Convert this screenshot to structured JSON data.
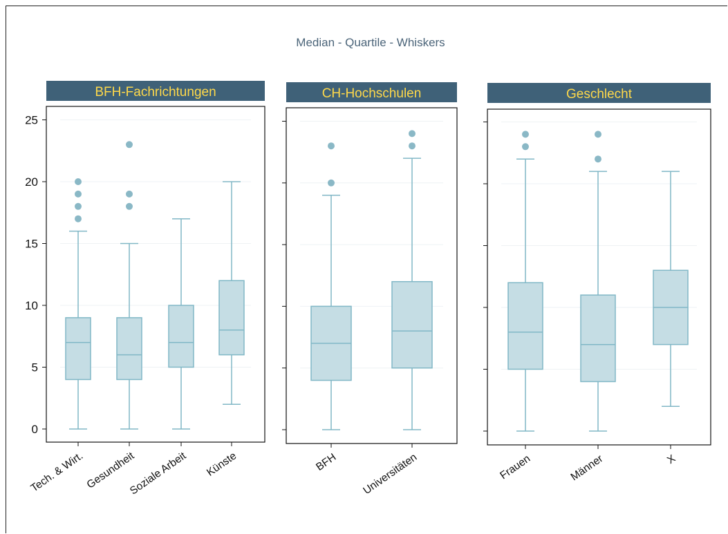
{
  "figure_title": "Median - Quartile - Whiskers",
  "colors": {
    "header_bg": "#3f6178",
    "header_text": "#ffd94a",
    "box_fill": "#c5dde4",
    "box_stroke": "#80b7c6",
    "outlier": "#8ab8c6",
    "grid": "#eef2f4",
    "title": "#4b6479"
  },
  "chart_data": [
    {
      "type": "boxplot",
      "title": "BFH-Fachrichtungen",
      "ylim": [
        0,
        25
      ],
      "yticks": [
        0,
        5,
        10,
        15,
        20,
        25
      ],
      "grid": true,
      "categories": [
        "Tech. & Wirt.",
        "Gesundheit",
        "Soziale Arbeit",
        "Künste"
      ],
      "boxes": [
        {
          "category": "Tech. & Wirt.",
          "whisker_low": 0,
          "q1": 4,
          "median": 7,
          "q3": 9,
          "whisker_high": 16,
          "outliers": [
            17,
            18,
            19,
            20
          ]
        },
        {
          "category": "Gesundheit",
          "whisker_low": 0,
          "q1": 4,
          "median": 6,
          "q3": 9,
          "whisker_high": 15,
          "outliers": [
            18,
            19,
            23
          ]
        },
        {
          "category": "Soziale Arbeit",
          "whisker_low": 0,
          "q1": 5,
          "median": 7,
          "q3": 10,
          "whisker_high": 17,
          "outliers": []
        },
        {
          "category": "Künste",
          "whisker_low": 2,
          "q1": 6,
          "median": 8,
          "q3": 12,
          "whisker_high": 20,
          "outliers": []
        }
      ]
    },
    {
      "type": "boxplot",
      "title": "CH-Hochschulen",
      "ylim": [
        0,
        25
      ],
      "yticks": [
        0,
        5,
        10,
        15,
        20,
        25
      ],
      "grid": true,
      "categories": [
        "BFH",
        "Universitäten"
      ],
      "boxes": [
        {
          "category": "BFH",
          "whisker_low": 0,
          "q1": 4,
          "median": 7,
          "q3": 10,
          "whisker_high": 19,
          "outliers": [
            20,
            23
          ]
        },
        {
          "category": "Universitäten",
          "whisker_low": 0,
          "q1": 5,
          "median": 8,
          "q3": 12,
          "whisker_high": 22,
          "outliers": [
            23,
            24
          ]
        }
      ]
    },
    {
      "type": "boxplot",
      "title": "Geschlecht",
      "ylim": [
        0,
        25
      ],
      "yticks": [
        0,
        5,
        10,
        15,
        20,
        25
      ],
      "grid": true,
      "categories": [
        "Frauen",
        "Männer",
        "X"
      ],
      "boxes": [
        {
          "category": "Frauen",
          "whisker_low": 0,
          "q1": 5,
          "median": 8,
          "q3": 12,
          "whisker_high": 22,
          "outliers": [
            23,
            24
          ]
        },
        {
          "category": "Männer",
          "whisker_low": 0,
          "q1": 4,
          "median": 7,
          "q3": 11,
          "whisker_high": 21,
          "outliers": [
            22,
            24
          ]
        },
        {
          "category": "X",
          "whisker_low": 2,
          "q1": 7,
          "median": 10,
          "q3": 13,
          "whisker_high": 21,
          "outliers": []
        }
      ]
    }
  ]
}
